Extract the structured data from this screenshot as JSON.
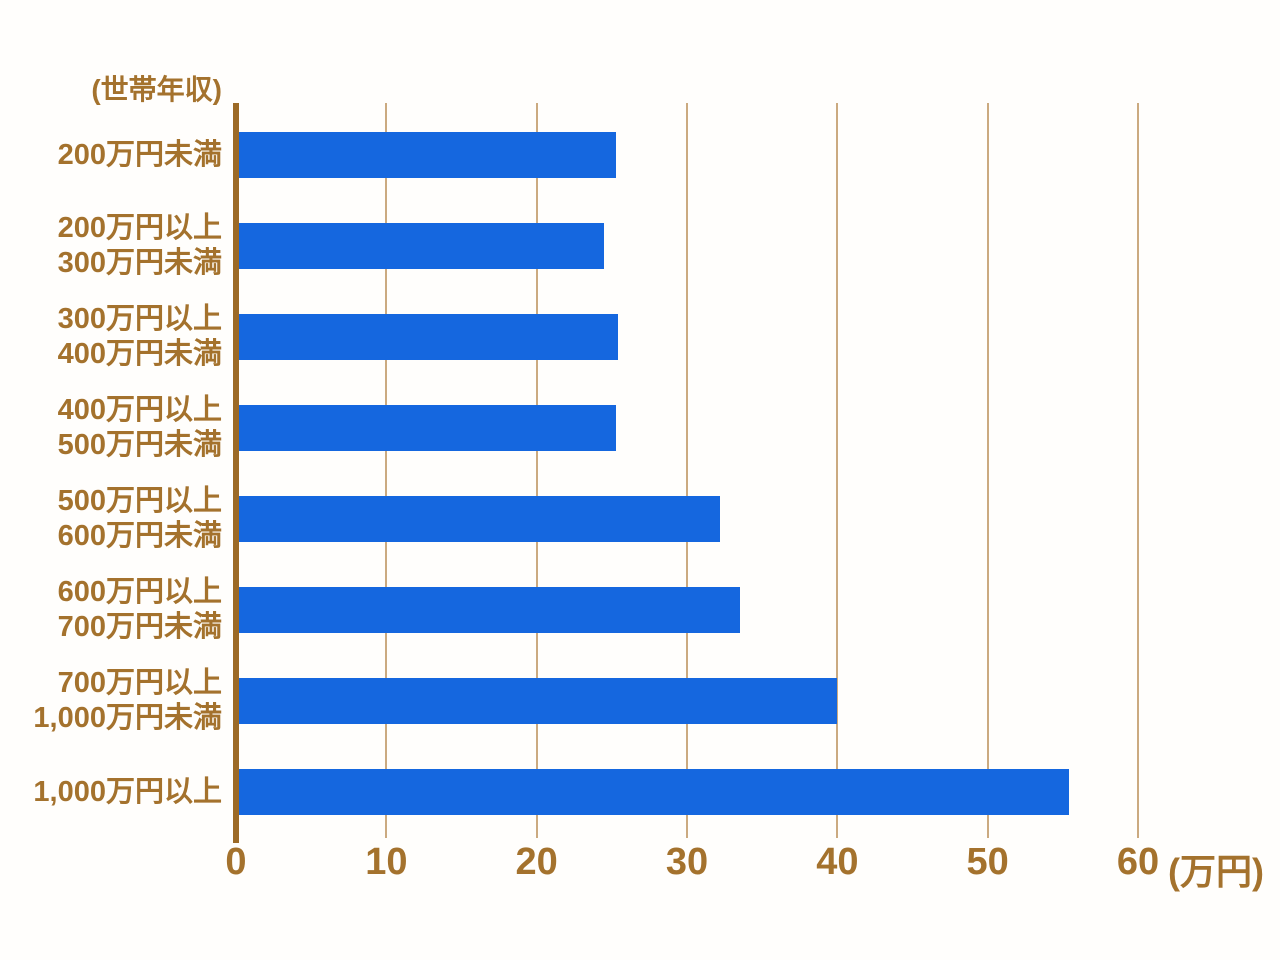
{
  "chart_data": {
    "type": "bar",
    "orientation": "horizontal",
    "axis_title": "(世帯年収)",
    "unit_label": "(万円)",
    "categories": [
      [
        "200万円未満"
      ],
      [
        "200万円以上",
        "300万円未満"
      ],
      [
        "300万円以上",
        "400万円未満"
      ],
      [
        "400万円以上",
        "500万円未満"
      ],
      [
        "500万円以上",
        "600万円未満"
      ],
      [
        "600万円以上",
        "700万円未満"
      ],
      [
        "700万円以上",
        "1,000万円未満"
      ],
      [
        "1,000万円以上"
      ]
    ],
    "values": [
      25.3,
      24.5,
      25.4,
      25.3,
      32.2,
      33.5,
      40.0,
      55.4
    ],
    "x_ticks": [
      "0",
      "10",
      "20",
      "30",
      "40",
      "50",
      "60"
    ],
    "xlim": [
      0,
      60
    ],
    "grid": true,
    "legend": "none",
    "colors": {
      "bar": "#1567df",
      "label_text": "#a4722d",
      "gridline": "#cbaa80",
      "axis_line": "#9c6a26",
      "background": "#fffefc"
    }
  }
}
